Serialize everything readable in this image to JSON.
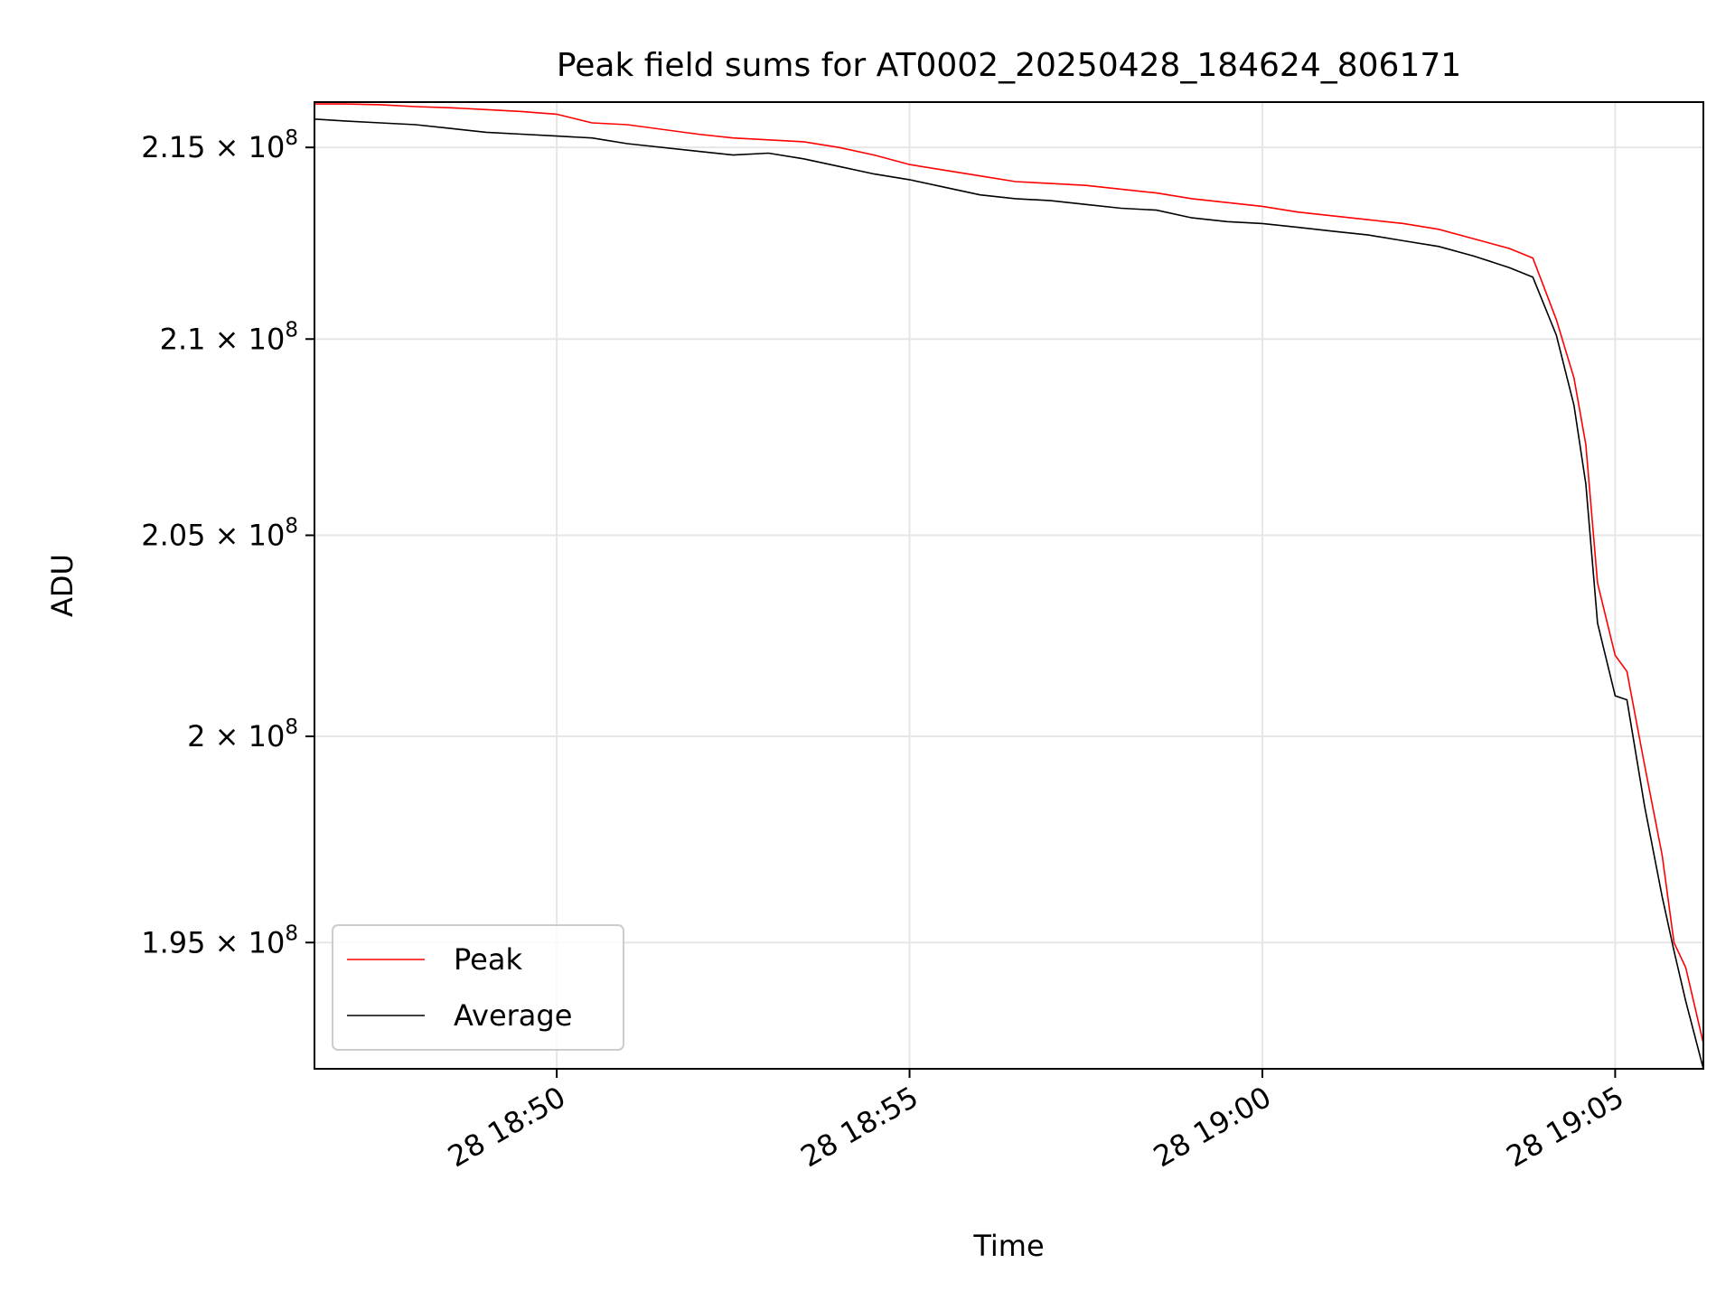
{
  "chart_data": {
    "type": "line",
    "title": "Peak field sums for AT0002_20250428_184624_806171",
    "xlabel": "Time",
    "ylabel": "ADU",
    "y_scale": "log",
    "xlim": [
      "2025-04-28T18:46:34",
      "2025-04-28T19:06:15"
    ],
    "ylim": [
      192000000,
      216200000
    ],
    "x_ticks": [
      {
        "value": "2025-04-28T18:50:00",
        "label": "28 18:50"
      },
      {
        "value": "2025-04-28T18:55:00",
        "label": "28 18:55"
      },
      {
        "value": "2025-04-28T19:00:00",
        "label": "28 19:00"
      },
      {
        "value": "2025-04-28T19:05:00",
        "label": "28 19:05"
      }
    ],
    "y_ticks": [
      {
        "value": 195000000,
        "label": "1.95 × 10⁸",
        "mant": "1.95",
        "exp": "8"
      },
      {
        "value": 200000000,
        "label": "2 × 10⁸",
        "mant": "2",
        "exp": "8"
      },
      {
        "value": 205000000,
        "label": "2.05 × 10⁸",
        "mant": "2.05",
        "exp": "8"
      },
      {
        "value": 210000000,
        "label": "2.1 × 10⁸",
        "mant": "2.1",
        "exp": "8"
      },
      {
        "value": 215000000,
        "label": "2.15 × 10⁸",
        "mant": "2.15",
        "exp": "8"
      }
    ],
    "grid": true,
    "legend_position": "lower-left",
    "series": [
      {
        "name": "Peak",
        "color": "#ff0000",
        "x": [
          "2025-04-28T18:46:34",
          "2025-04-28T18:47:00",
          "2025-04-28T18:47:30",
          "2025-04-28T18:48:00",
          "2025-04-28T18:48:30",
          "2025-04-28T18:49:00",
          "2025-04-28T18:49:30",
          "2025-04-28T18:50:00",
          "2025-04-28T18:50:30",
          "2025-04-28T18:51:00",
          "2025-04-28T18:52:00",
          "2025-04-28T18:52:30",
          "2025-04-28T18:53:00",
          "2025-04-28T18:53:30",
          "2025-04-28T18:54:00",
          "2025-04-28T18:54:30",
          "2025-04-28T18:55:00",
          "2025-04-28T18:55:30",
          "2025-04-28T18:56:00",
          "2025-04-28T18:56:30",
          "2025-04-28T18:57:00",
          "2025-04-28T18:57:30",
          "2025-04-28T18:58:00",
          "2025-04-28T18:58:30",
          "2025-04-28T18:59:00",
          "2025-04-28T18:59:30",
          "2025-04-28T19:00:00",
          "2025-04-28T19:00:30",
          "2025-04-28T19:01:00",
          "2025-04-28T19:01:30",
          "2025-04-28T19:02:00",
          "2025-04-28T19:02:30",
          "2025-04-28T19:03:00",
          "2025-04-28T19:03:30",
          "2025-04-28T19:03:50",
          "2025-04-28T19:04:10",
          "2025-04-28T19:04:25",
          "2025-04-28T19:04:35",
          "2025-04-28T19:04:45",
          "2025-04-28T19:05:00",
          "2025-04-28T19:05:10",
          "2025-04-28T19:05:25",
          "2025-04-28T19:05:40",
          "2025-04-28T19:05:50",
          "2025-04-28T19:06:00",
          "2025-04-28T19:06:15"
        ],
        "values": [
          216150000,
          216150000,
          216130000,
          216080000,
          216050000,
          216000000,
          215950000,
          215880000,
          215650000,
          215600000,
          215350000,
          215250000,
          215200000,
          215150000,
          215000000,
          214800000,
          214550000,
          214400000,
          214250000,
          214100000,
          214050000,
          214000000,
          213900000,
          213800000,
          213650000,
          213550000,
          213450000,
          213300000,
          213200000,
          213100000,
          213000000,
          212850000,
          212600000,
          212350000,
          212100000,
          210500000,
          209000000,
          207300000,
          203800000,
          202000000,
          201600000,
          199300000,
          197100000,
          195000000,
          194400000,
          192600000
        ]
      },
      {
        "name": "Average",
        "color": "#000000",
        "x": [
          "2025-04-28T18:46:34",
          "2025-04-28T18:47:00",
          "2025-04-28T18:47:30",
          "2025-04-28T18:48:00",
          "2025-04-28T18:48:30",
          "2025-04-28T18:49:00",
          "2025-04-28T18:49:30",
          "2025-04-28T18:50:00",
          "2025-04-28T18:50:30",
          "2025-04-28T18:51:00",
          "2025-04-28T18:52:00",
          "2025-04-28T18:52:30",
          "2025-04-28T18:53:00",
          "2025-04-28T18:53:30",
          "2025-04-28T18:54:00",
          "2025-04-28T18:54:30",
          "2025-04-28T18:55:00",
          "2025-04-28T18:55:30",
          "2025-04-28T18:56:00",
          "2025-04-28T18:56:30",
          "2025-04-28T18:57:00",
          "2025-04-28T18:57:30",
          "2025-04-28T18:58:00",
          "2025-04-28T18:58:30",
          "2025-04-28T18:59:00",
          "2025-04-28T18:59:30",
          "2025-04-28T19:00:00",
          "2025-04-28T19:00:30",
          "2025-04-28T19:01:00",
          "2025-04-28T19:01:30",
          "2025-04-28T19:02:00",
          "2025-04-28T19:02:30",
          "2025-04-28T19:03:00",
          "2025-04-28T19:03:30",
          "2025-04-28T19:03:50",
          "2025-04-28T19:04:10",
          "2025-04-28T19:04:25",
          "2025-04-28T19:04:35",
          "2025-04-28T19:04:45",
          "2025-04-28T19:05:00",
          "2025-04-28T19:05:10",
          "2025-04-28T19:05:25",
          "2025-04-28T19:05:40",
          "2025-04-28T19:05:50",
          "2025-04-28T19:06:00",
          "2025-04-28T19:06:15"
        ],
        "values": [
          215750000,
          215700000,
          215650000,
          215600000,
          215500000,
          215400000,
          215350000,
          215300000,
          215250000,
          215100000,
          214900000,
          214800000,
          214850000,
          214700000,
          214500000,
          214300000,
          214150000,
          213950000,
          213750000,
          213650000,
          213600000,
          213500000,
          213400000,
          213350000,
          213150000,
          213050000,
          213000000,
          212900000,
          212800000,
          212700000,
          212550000,
          212400000,
          212150000,
          211850000,
          211600000,
          210100000,
          208300000,
          206300000,
          202800000,
          201000000,
          200900000,
          198300000,
          196100000,
          194800000,
          193600000,
          192000000
        ]
      }
    ]
  }
}
